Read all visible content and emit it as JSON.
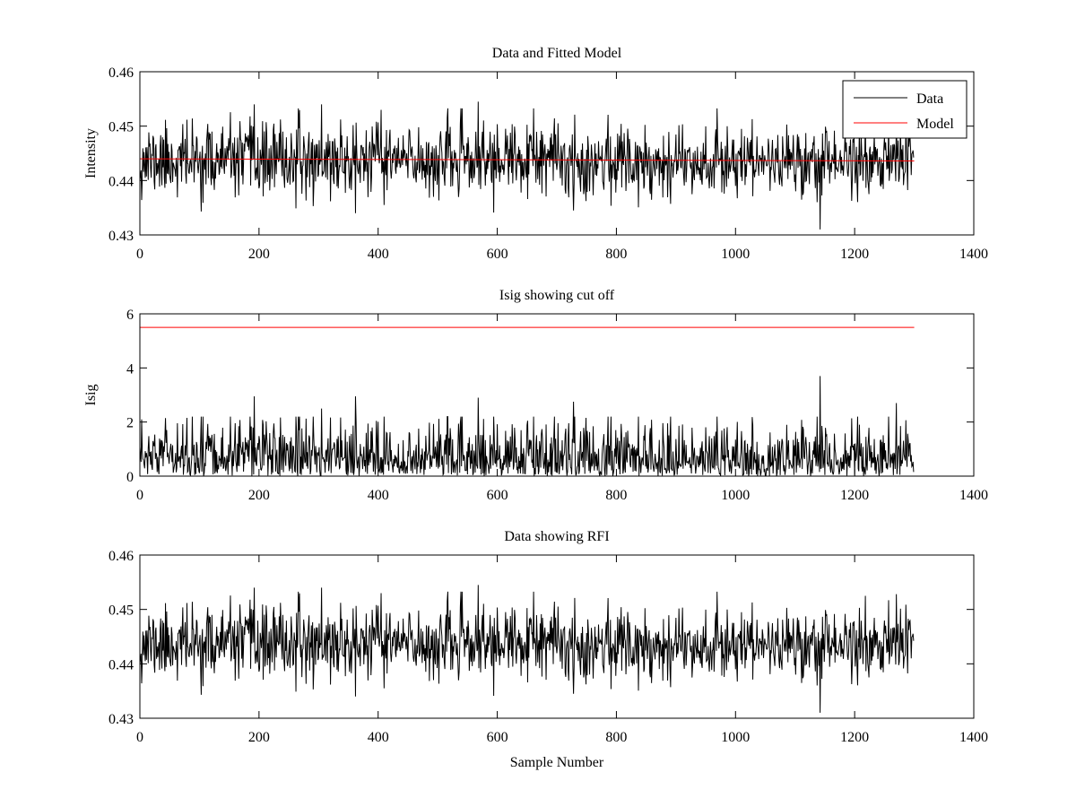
{
  "chart_data": [
    {
      "type": "line",
      "title": "Data and Fitted Model",
      "xlabel": "",
      "ylabel": "Intensity",
      "xlim": [
        0,
        1400
      ],
      "ylim": [
        0.43,
        0.46
      ],
      "xticks": [
        0,
        200,
        400,
        600,
        800,
        1000,
        1200,
        1400
      ],
      "yticks": [
        0.43,
        0.44,
        0.45,
        0.46
      ],
      "xtick_labels": [
        "0",
        "200",
        "400",
        "600",
        "800",
        "1000",
        "1200",
        "1400"
      ],
      "ytick_labels": [
        "0.43",
        "0.44",
        "0.45",
        "0.46"
      ],
      "grid": false,
      "legend": "top-right",
      "series": [
        {
          "name": "Data",
          "color": "#000000",
          "kind": "noise",
          "n": 1300,
          "x_start": 0,
          "mean": 0.4437,
          "std": 0.0033,
          "seed": 11,
          "spikes": [
            [
              192,
              0.454
            ],
            [
              305,
              0.454
            ],
            [
              568,
              0.4545
            ],
            [
              362,
              0.434
            ],
            [
              728,
              0.4345
            ],
            [
              1142,
              0.431
            ],
            [
              1270,
              0.4528
            ],
            [
              1218,
              0.4525
            ],
            [
              405,
              0.453
            ]
          ]
        },
        {
          "name": "Model",
          "color": "#ff0000",
          "kind": "line",
          "x": [
            0,
            1300
          ],
          "y": [
            0.444,
            0.4436
          ]
        }
      ]
    },
    {
      "type": "line",
      "title": "Isig showing cut off",
      "xlabel": "",
      "ylabel": "Isig",
      "xlim": [
        0,
        1400
      ],
      "ylim": [
        0,
        6
      ],
      "xticks": [
        0,
        200,
        400,
        600,
        800,
        1000,
        1200,
        1400
      ],
      "yticks": [
        0,
        2,
        4,
        6
      ],
      "xtick_labels": [
        "0",
        "200",
        "400",
        "600",
        "800",
        "1000",
        "1200",
        "1400"
      ],
      "ytick_labels": [
        "0",
        "2",
        "4",
        "6"
      ],
      "grid": false,
      "series": [
        {
          "color": "#000000",
          "kind": "absnoise",
          "n": 1300,
          "x_start": 0,
          "std": 0.95,
          "seed": 11,
          "spikes": [
            [
              1142,
              3.7
            ],
            [
              192,
              2.95
            ],
            [
              362,
              2.95
            ],
            [
              568,
              2.9
            ],
            [
              728,
              2.75
            ],
            [
              1270,
              2.7
            ],
            [
              305,
              2.5
            ]
          ]
        },
        {
          "color": "#ff0000",
          "kind": "line",
          "x": [
            0,
            1300
          ],
          "y": [
            5.5,
            5.5
          ]
        }
      ]
    },
    {
      "type": "line",
      "title": "Data showing RFI",
      "xlabel": "Sample Number",
      "ylabel": "",
      "xlim": [
        0,
        1400
      ],
      "ylim": [
        0.43,
        0.46
      ],
      "xticks": [
        0,
        200,
        400,
        600,
        800,
        1000,
        1200,
        1400
      ],
      "yticks": [
        0.43,
        0.44,
        0.45,
        0.46
      ],
      "xtick_labels": [
        "0",
        "200",
        "400",
        "600",
        "800",
        "1000",
        "1200",
        "1400"
      ],
      "ytick_labels": [
        "0.43",
        "0.44",
        "0.45",
        "0.46"
      ],
      "grid": false,
      "series": [
        {
          "color": "#000000",
          "kind": "noise",
          "n": 1300,
          "x_start": 0,
          "mean": 0.4437,
          "std": 0.0033,
          "seed": 11,
          "spikes": [
            [
              192,
              0.454
            ],
            [
              305,
              0.454
            ],
            [
              568,
              0.4545
            ],
            [
              362,
              0.434
            ],
            [
              728,
              0.4345
            ],
            [
              1142,
              0.431
            ],
            [
              1270,
              0.4528
            ],
            [
              1218,
              0.4525
            ],
            [
              405,
              0.453
            ]
          ]
        }
      ]
    }
  ]
}
